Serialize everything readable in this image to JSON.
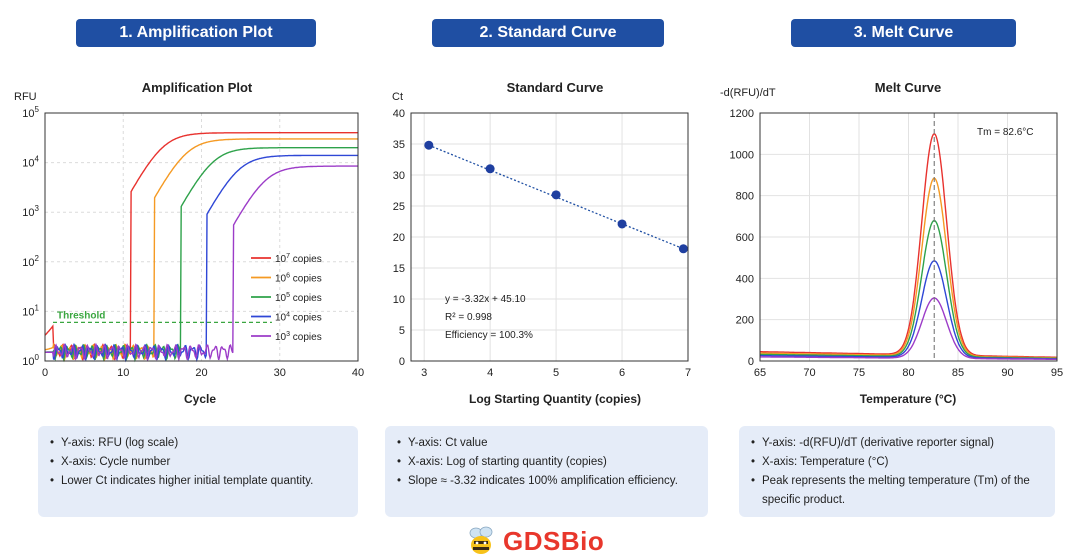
{
  "headers": [
    {
      "label": "1. Amplification Plot"
    },
    {
      "label": "2. Standard Curve"
    },
    {
      "label": "3. Melt Curve"
    }
  ],
  "notes": [
    {
      "items": [
        "Y-axis: RFU (log scale)",
        "X-axis: Cycle number",
        "Lower Ct indicates higher initial template quantity."
      ]
    },
    {
      "items": [
        "Y-axis: Ct value",
        "X-axis: Log of starting quantity (copies)",
        "Slope ≈ -3.32 indicates 100% amplification efficiency."
      ]
    },
    {
      "items": [
        "Y-axis: -d(RFU)/dT (derivative reporter signal)",
        "X-axis: Temperature (°C)",
        "Peak represents the melting temperature (Tm) of the specific product."
      ]
    }
  ],
  "logo": {
    "text": "GDSBio",
    "icon": "bee-icon"
  },
  "chart_data": [
    {
      "type": "line",
      "title": "Amplification Plot",
      "ylabel": "RFU",
      "xlabel": "Cycle",
      "xlim": [
        0,
        40
      ],
      "xticks": [
        0,
        10,
        20,
        30,
        40
      ],
      "yscale": "log",
      "ylim": [
        1,
        100000
      ],
      "yticks": [
        1,
        10,
        100,
        1000,
        10000,
        100000
      ],
      "threshold": {
        "label": "Threshold",
        "value": 6,
        "color": "#3aa640",
        "x_end": 29
      },
      "legend": "right",
      "series": [
        {
          "name": "10",
          "exp": "7",
          "suffix": "copies",
          "color": "#e8322e",
          "ct": 10.5,
          "plateau": 40000
        },
        {
          "name": "10",
          "exp": "6",
          "suffix": "copies",
          "color": "#f59a23",
          "ct": 13.5,
          "plateau": 30000
        },
        {
          "name": "10",
          "exp": "5",
          "suffix": "copies",
          "color": "#2ea24a",
          "ct": 16.9,
          "plateau": 20000
        },
        {
          "name": "10",
          "exp": "4",
          "suffix": "copies",
          "color": "#2f47d6",
          "ct": 20.2,
          "plateau": 14000
        },
        {
          "name": "10",
          "exp": "3",
          "suffix": "copies",
          "color": "#9c3cc8",
          "ct": 23.6,
          "plateau": 8500
        }
      ]
    },
    {
      "type": "scatter",
      "title": "Standard Curve",
      "ylabel": "Ct",
      "xlabel": "Log Starting Quantity (copies)",
      "xlim": [
        2.8,
        7.0
      ],
      "xticks": [
        3,
        4,
        5,
        6,
        7
      ],
      "ylim": [
        0,
        40
      ],
      "yticks": [
        0,
        5,
        10,
        15,
        20,
        25,
        30,
        35,
        40
      ],
      "x": [
        3.07,
        4.0,
        5.0,
        6.0,
        6.93
      ],
      "y": [
        34.8,
        31.0,
        26.8,
        22.1,
        18.1
      ],
      "fit": {
        "slope": -3.32,
        "intercept": 45.1,
        "x_range": [
          3.07,
          6.93
        ],
        "color": "#1f4fa3"
      },
      "annotations": [
        "y = -3.32x + 45.10",
        "R² = 0.998",
        "Efficiency = 100.3%"
      ]
    },
    {
      "type": "line",
      "title": "Melt Curve",
      "ylabel": "-d(RFU)/dT",
      "xlabel": "Temperature (°C)",
      "xlim": [
        65,
        95
      ],
      "xticks": [
        65,
        70,
        75,
        80,
        85,
        90,
        95
      ],
      "ylim": [
        0,
        1200
      ],
      "yticks": [
        0,
        200,
        400,
        600,
        800,
        1000,
        1200
      ],
      "tm": {
        "label": "Tm = 82.6°C",
        "value": 82.6
      },
      "series": [
        {
          "color": "#e8322e",
          "peak": 1100,
          "base": 45
        },
        {
          "color": "#f59a23",
          "peak": 885,
          "base": 38
        },
        {
          "color": "#2ea24a",
          "peak": 680,
          "base": 32
        },
        {
          "color": "#2f47d6",
          "peak": 485,
          "base": 26
        },
        {
          "color": "#9c3cc8",
          "peak": 305,
          "base": 20
        }
      ]
    }
  ]
}
